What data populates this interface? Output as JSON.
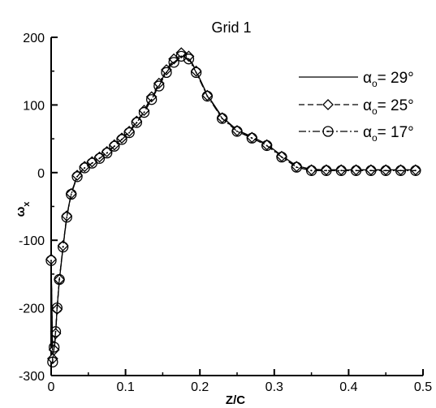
{
  "chart_data": {
    "type": "line",
    "title": "Grid 1",
    "xlabel": "Z/C",
    "ylabel": "ω",
    "ylabel_sub": "x",
    "xlim": [
      0,
      0.5
    ],
    "ylim": [
      -300,
      200
    ],
    "xticks": [
      0,
      0.1,
      0.2,
      0.3,
      0.4,
      0.5
    ],
    "xtick_labels": [
      "0",
      "0.1",
      "0.2",
      "0.3",
      "0.4",
      "0.5"
    ],
    "yticks": [
      -300,
      -200,
      -100,
      0,
      100,
      200
    ],
    "ytick_labels": [
      "-300",
      "-200",
      "-100",
      "0",
      "100",
      "200"
    ],
    "grid": false,
    "legend_position": "right",
    "legend_symbol": "α",
    "legend_symbol_sub": "o",
    "series": [
      {
        "name": "= 29°",
        "style": "solid",
        "marker": "none",
        "x": [
          0.0,
          0.002,
          0.004,
          0.006,
          0.008,
          0.011,
          0.016,
          0.021,
          0.027,
          0.035,
          0.045,
          0.055,
          0.065,
          0.075,
          0.085,
          0.095,
          0.105,
          0.115,
          0.125,
          0.135,
          0.145,
          0.155,
          0.165,
          0.175,
          0.185,
          0.195,
          0.21,
          0.23,
          0.25,
          0.27,
          0.29,
          0.31,
          0.33,
          0.35,
          0.37,
          0.39,
          0.41,
          0.43,
          0.45,
          0.47,
          0.49
        ],
        "y": [
          -130,
          -270,
          -265,
          -240,
          -200,
          -160,
          -110,
          -65,
          -30,
          -5,
          8,
          15,
          22,
          30,
          40,
          50,
          60,
          75,
          90,
          110,
          130,
          150,
          165,
          175,
          170,
          150,
          115,
          82,
          63,
          53,
          42,
          25,
          10,
          5,
          4,
          4,
          4,
          4,
          4,
          4,
          4
        ]
      },
      {
        "name": "= 25°",
        "style": "dashed",
        "marker": "diamond",
        "x": [
          0.0,
          0.002,
          0.004,
          0.006,
          0.008,
          0.011,
          0.016,
          0.021,
          0.027,
          0.035,
          0.045,
          0.055,
          0.065,
          0.075,
          0.085,
          0.095,
          0.105,
          0.115,
          0.125,
          0.135,
          0.145,
          0.155,
          0.165,
          0.175,
          0.185,
          0.195,
          0.21,
          0.23,
          0.25,
          0.27,
          0.29,
          0.31,
          0.33,
          0.35,
          0.37,
          0.39,
          0.41,
          0.43,
          0.45,
          0.47,
          0.49
        ],
        "y": [
          -128,
          -275,
          -262,
          -238,
          -202,
          -158,
          -108,
          -64,
          -31,
          -4,
          9,
          16,
          23,
          31,
          41,
          51,
          61,
          76,
          92,
          112,
          132,
          152,
          168,
          177,
          172,
          150,
          114,
          81,
          62,
          52,
          41,
          24,
          9,
          4,
          4,
          4,
          4,
          4,
          4,
          4,
          4
        ]
      },
      {
        "name": "= 17°",
        "style": "dash-dot",
        "marker": "circle",
        "x": [
          0.0,
          0.002,
          0.004,
          0.006,
          0.008,
          0.011,
          0.016,
          0.021,
          0.027,
          0.035,
          0.045,
          0.055,
          0.065,
          0.075,
          0.085,
          0.095,
          0.105,
          0.115,
          0.125,
          0.135,
          0.145,
          0.155,
          0.165,
          0.175,
          0.185,
          0.195,
          0.21,
          0.23,
          0.25,
          0.27,
          0.29,
          0.31,
          0.33,
          0.35,
          0.37,
          0.39,
          0.41,
          0.43,
          0.45,
          0.47,
          0.49
        ],
        "y": [
          -130,
          -280,
          -258,
          -235,
          -200,
          -158,
          -110,
          -66,
          -32,
          -6,
          7,
          14,
          21,
          29,
          39,
          49,
          59,
          74,
          89,
          108,
          128,
          148,
          163,
          172,
          168,
          148,
          113,
          80,
          61,
          51,
          40,
          23,
          8,
          3,
          3,
          3,
          3,
          3,
          3,
          3,
          3
        ]
      }
    ]
  }
}
